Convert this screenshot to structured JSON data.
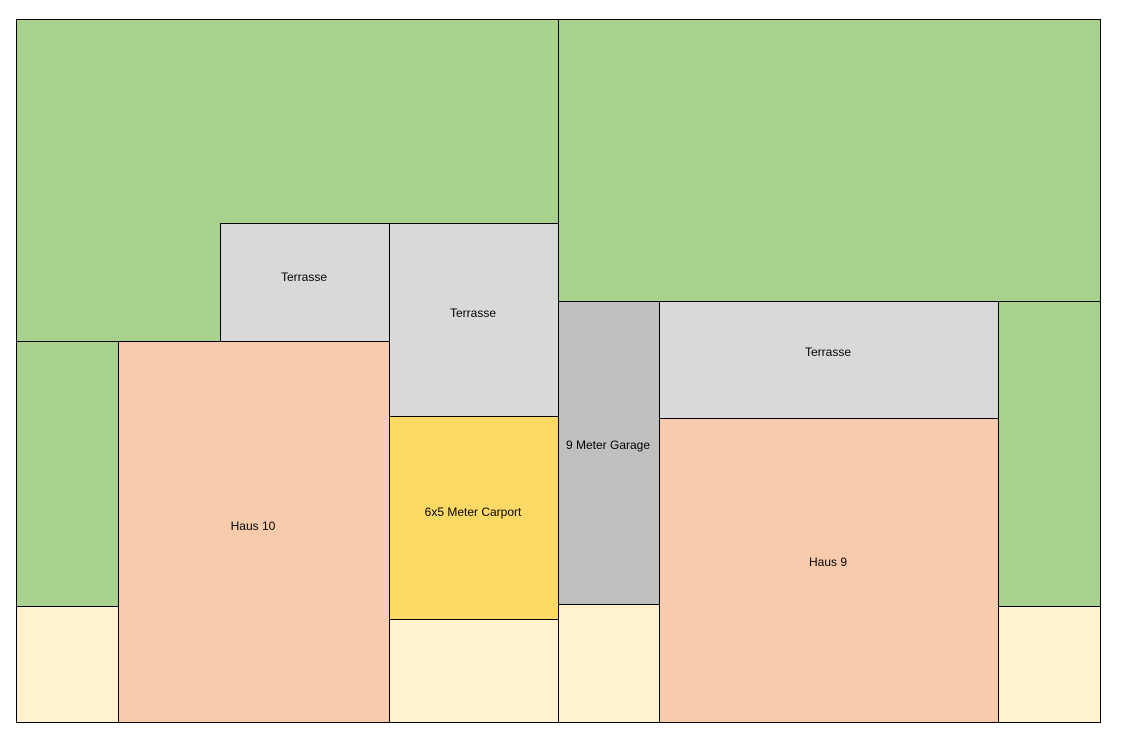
{
  "areas": [
    {
      "label": "Terrasse"
    },
    {
      "label": "Terrasse"
    },
    {
      "label": "Haus 10"
    },
    {
      "label": "6x5 Meter Carport"
    },
    {
      "label": "9 Meter Garage"
    },
    {
      "label": "Terrasse"
    },
    {
      "label": "Haus 9"
    }
  ]
}
